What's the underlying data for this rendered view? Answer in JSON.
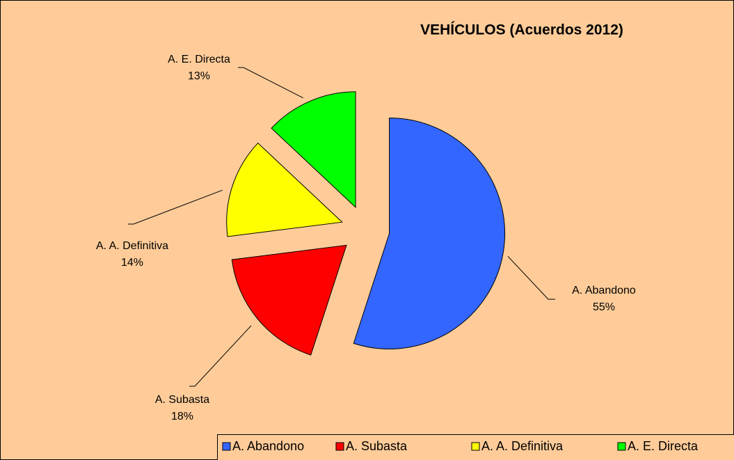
{
  "chart_data": {
    "type": "pie",
    "title": "VEHÍCULOS (Acuerdos 2012)",
    "categories": [
      "A. Abandono",
      "A. Subasta",
      "A. A. Definitiva",
      "A. E. Directa"
    ],
    "values": [
      55,
      18,
      14,
      13
    ],
    "value_labels": [
      "55%",
      "18%",
      "14%",
      "13%"
    ],
    "colors": [
      "#3366ff",
      "#ff0000",
      "#ffff00",
      "#00ff00"
    ],
    "legend": "bottom"
  }
}
